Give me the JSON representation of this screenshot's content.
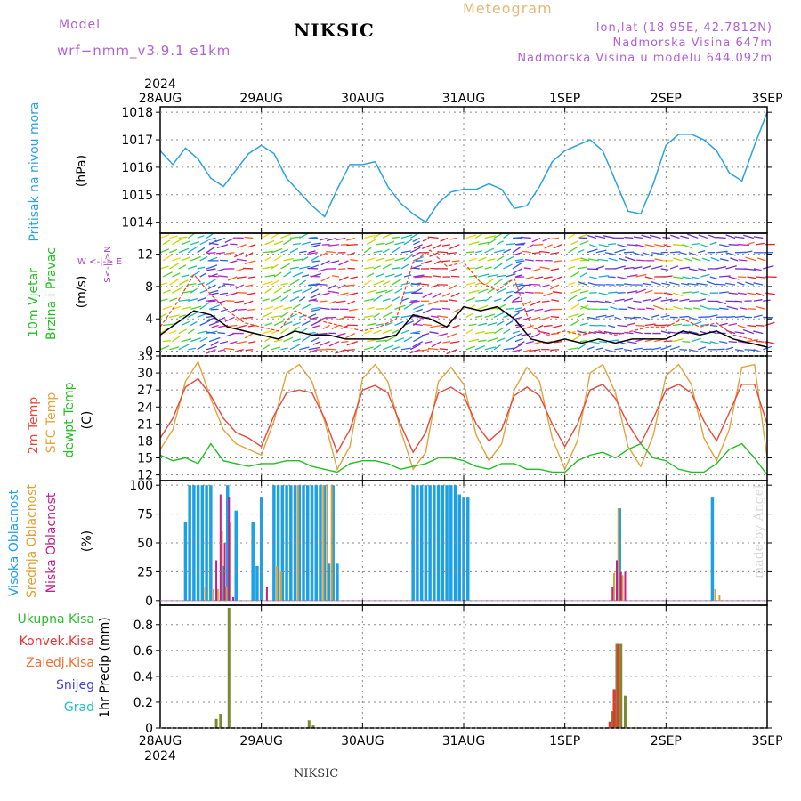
{
  "header": {
    "model_label": "Model",
    "model": "wrf−nmm_v3.9.1  e1km",
    "station": "NIKSIC",
    "product": "Meteogram",
    "lonlat": "lon,lat (18.95E, 42.7812N)",
    "altitude": "Nadmorska Visina 647m",
    "altitude_model": "Nadmorska Visina u modelu 644.092m",
    "footer_station": "NIKSIC",
    "credit": "made by Angel"
  },
  "colors": {
    "pressure": "#29a3e0",
    "wind_speed": "#000000",
    "wind_gust": "#ff3b1f",
    "temp2m": "#e8473a",
    "sfc_temp": "#e3a33b",
    "dewpt": "#20c020",
    "cloud_high": "#1ea0e6",
    "cloud_mid": "#e0a030",
    "cloud_low": "#c0208a",
    "precip_total": "#2cbc2c",
    "precip_conv": "#ee3030",
    "precip_frozen": "#f07030",
    "snow": "#4040e0",
    "graupel": "#20c0c0"
  },
  "time_axis": {
    "year": "2024",
    "labels": [
      "28AUG",
      "29AUG",
      "30AUG",
      "31AUG",
      "1SEP",
      "2SEP",
      "3SEP"
    ],
    "hours": 144
  },
  "panels": {
    "pressure": {
      "title": "Pritisak na nivou mora",
      "unit": "(hPa)"
    },
    "wind": {
      "title_line1": "10m Vjetar",
      "title_line2": "Brzina i Pravac",
      "unit": "(m/s)",
      "legend": "W  <-|->  E",
      "legend2": "S<-|->N"
    },
    "temp": {
      "label_2m": "2m Temp",
      "label_sfc": "SFC Temp",
      "label_dew": "dewpt Temp",
      "unit": "(C)"
    },
    "cloud": {
      "label_high": "Visoka Oblacnost",
      "label_mid": "Srednja Oblacnost",
      "label_low": "Niska Oblacnost",
      "unit": "(%)"
    },
    "precip": {
      "labels": [
        "Ukupna Kisa",
        "Konvek.Kisa",
        "Zaledj.Kisa",
        "Snijeg",
        "Grad"
      ],
      "unit": "1hr Precip (mm)"
    }
  },
  "chart_data": [
    {
      "type": "line",
      "title": "Pritisak na nivou mora",
      "ylabel": "(hPa)",
      "ylim": [
        1013.6,
        1018.2
      ],
      "yticks": [
        1014,
        1015,
        1016,
        1017,
        1018
      ],
      "x": [
        0,
        3,
        6,
        9,
        12,
        15,
        18,
        21,
        24,
        27,
        30,
        33,
        36,
        39,
        42,
        45,
        48,
        51,
        54,
        57,
        60,
        63,
        66,
        69,
        72,
        75,
        78,
        81,
        84,
        87,
        90,
        93,
        96,
        99,
        102,
        105,
        108,
        111,
        114,
        117,
        120,
        123,
        126,
        129,
        132,
        135,
        138,
        141,
        144
      ],
      "series": [
        {
          "values": [
            1016.6,
            1016.1,
            1016.7,
            1016.3,
            1015.6,
            1015.3,
            1015.9,
            1016.5,
            1016.8,
            1016.5,
            1015.6,
            1015.1,
            1014.6,
            1014.2,
            1015.2,
            1016.1,
            1016.1,
            1016.2,
            1015.3,
            1014.7,
            1014.3,
            1014.0,
            1014.7,
            1015.1,
            1015.2,
            1015.2,
            1015.4,
            1015.2,
            1014.5,
            1014.6,
            1015.3,
            1016.2,
            1016.6,
            1016.8,
            1017.0,
            1016.6,
            1015.5,
            1014.4,
            1014.3,
            1015.4,
            1016.8,
            1017.2,
            1017.2,
            1017.0,
            1016.6,
            1015.8,
            1015.5,
            1016.8,
            1018.0
          ]
        }
      ]
    },
    {
      "type": "line",
      "title": "10m Vjetar Brzina i Pravac",
      "ylabel": "(m/s)",
      "ylim": [
        -0.6,
        14.6
      ],
      "yticks": [
        0,
        4,
        8,
        12
      ],
      "x": [
        0,
        4,
        8,
        12,
        16,
        20,
        24,
        28,
        32,
        36,
        40,
        44,
        48,
        52,
        56,
        60,
        64,
        68,
        72,
        76,
        80,
        84,
        88,
        92,
        96,
        100,
        104,
        108,
        112,
        116,
        120,
        124,
        128,
        132,
        136,
        140,
        144
      ],
      "series": [
        {
          "name": "speed",
          "values": [
            2.0,
            3.5,
            5.0,
            4.5,
            3.0,
            2.5,
            2.0,
            1.5,
            2.5,
            2.0,
            2.0,
            1.5,
            1.5,
            1.5,
            2.0,
            4.5,
            4.0,
            3.0,
            5.5,
            5.0,
            5.5,
            4.0,
            1.5,
            1.0,
            1.5,
            1.0,
            1.5,
            1.0,
            1.5,
            1.5,
            1.5,
            2.5,
            2.0,
            2.5,
            1.5,
            1.0,
            0.5
          ]
        },
        {
          "name": "gust",
          "values": [
            3.0,
            6.0,
            9.5,
            7.0,
            5.0,
            3.5,
            3.0,
            2.5,
            5.0,
            4.0,
            3.5,
            3.0,
            2.5,
            3.0,
            4.0,
            11.0,
            12.5,
            10.5,
            11.0,
            8.5,
            7.5,
            9.0,
            3.0,
            2.0,
            2.5,
            2.0,
            2.5,
            2.0,
            2.5,
            3.0,
            3.0,
            4.0,
            3.0,
            3.5,
            2.0,
            1.5,
            1.0
          ]
        }
      ]
    },
    {
      "type": "line",
      "title": "2m Temp / SFC Temp / dewpt Temp",
      "ylabel": "(C)",
      "ylim": [
        11,
        33
      ],
      "yticks": [
        12,
        15,
        18,
        21,
        24,
        27,
        30,
        33
      ],
      "x": [
        0,
        3,
        6,
        9,
        12,
        15,
        18,
        21,
        24,
        27,
        30,
        33,
        36,
        39,
        42,
        45,
        48,
        51,
        54,
        57,
        60,
        63,
        66,
        69,
        72,
        75,
        78,
        81,
        84,
        87,
        90,
        93,
        96,
        99,
        102,
        105,
        108,
        111,
        114,
        117,
        120,
        123,
        126,
        129,
        132,
        135,
        138,
        141,
        144
      ],
      "series": [
        {
          "name": "2m Temp",
          "values": [
            18.5,
            22.0,
            27.5,
            29.0,
            26.0,
            22.0,
            19.5,
            18.5,
            17.0,
            22.5,
            26.5,
            27.0,
            26.5,
            22.0,
            16.0,
            20.0,
            27.0,
            27.8,
            26.5,
            21.0,
            16.0,
            19.5,
            26.5,
            27.5,
            26.0,
            21.0,
            18.0,
            20.0,
            26.0,
            27.5,
            26.0,
            21.0,
            17.0,
            21.0,
            27.0,
            28.0,
            25.5,
            21.0,
            17.5,
            22.0,
            27.0,
            28.0,
            26.5,
            21.5,
            18.0,
            23.0,
            28.0,
            28.0,
            21.0
          ]
        },
        {
          "name": "SFC Temp",
          "values": [
            16.5,
            20.0,
            28.5,
            32.0,
            25.5,
            20.0,
            17.5,
            16.5,
            15.5,
            21.5,
            30.0,
            31.5,
            28.5,
            21.5,
            13.0,
            17.0,
            29.0,
            31.5,
            28.5,
            20.0,
            13.0,
            16.0,
            28.5,
            31.0,
            28.0,
            19.0,
            14.5,
            17.5,
            27.0,
            31.0,
            28.5,
            18.5,
            13.0,
            18.0,
            30.0,
            31.5,
            26.5,
            17.0,
            13.5,
            19.0,
            29.5,
            31.5,
            28.0,
            18.5,
            14.5,
            20.0,
            31.0,
            31.5,
            15.0
          ]
        },
        {
          "name": "dewpt Temp",
          "values": [
            15.5,
            14.5,
            15.0,
            14.0,
            17.5,
            14.5,
            14.0,
            13.5,
            14.0,
            14.0,
            14.5,
            14.5,
            13.5,
            13.0,
            12.5,
            14.0,
            14.5,
            14.5,
            14.0,
            13.0,
            13.5,
            14.0,
            15.0,
            15.0,
            14.5,
            13.5,
            13.0,
            14.0,
            14.0,
            13.0,
            13.0,
            12.5,
            12.5,
            14.5,
            15.5,
            16.0,
            15.0,
            16.5,
            17.5,
            15.0,
            14.5,
            13.0,
            12.5,
            12.5,
            14.0,
            16.5,
            17.5,
            15.0,
            12.0
          ]
        }
      ]
    },
    {
      "type": "bar",
      "title": "Visoka / Srednja / Niska Oblacnost",
      "ylabel": "(%)",
      "ylim": [
        0,
        100
      ],
      "yticks": [
        0,
        25,
        50,
        75,
        100
      ],
      "series": [
        {
          "name": "Visoka Oblacnost",
          "hours": [
            6,
            7,
            8,
            9,
            10,
            11,
            12,
            15,
            16,
            18,
            22,
            23,
            24,
            27,
            28,
            29,
            30,
            31,
            32,
            33,
            34,
            35,
            36,
            37,
            38,
            39,
            40,
            41,
            42,
            60,
            61,
            62,
            63,
            64,
            65,
            66,
            67,
            68,
            69,
            70,
            71,
            72,
            73,
            109,
            131
          ],
          "values": [
            68,
            100,
            100,
            100,
            100,
            100,
            100,
            30,
            100,
            78,
            68,
            30,
            90,
            100,
            100,
            100,
            100,
            100,
            100,
            100,
            100,
            100,
            100,
            100,
            100,
            100,
            32,
            100,
            32,
            100,
            100,
            100,
            100,
            100,
            100,
            100,
            100,
            100,
            100,
            100,
            92,
            90,
            90,
            80,
            90
          ]
        },
        {
          "name": "Srednja Oblacnost",
          "hours": [
            11,
            13,
            14,
            15,
            16,
            17,
            28,
            29,
            33,
            39,
            40,
            41,
            108,
            109,
            110,
            132,
            133
          ],
          "values": [
            12,
            10,
            10,
            60,
            12,
            68,
            30,
            25,
            100,
            100,
            100,
            100,
            24,
            80,
            22,
            10,
            5
          ]
        },
        {
          "name": "Niska Oblacnost",
          "hours": [
            13,
            14,
            15,
            16,
            17,
            25,
            107,
            108,
            109,
            110
          ],
          "values": [
            35,
            92,
            50,
            90,
            3,
            12,
            12,
            35,
            25,
            25
          ]
        }
      ]
    },
    {
      "type": "bar",
      "title": "1hr Precip",
      "ylabel": "1hr Precip (mm)",
      "ylim": [
        0,
        0.95
      ],
      "yticks": [
        0,
        0.2,
        0.4,
        0.6,
        0.8
      ],
      "series": [
        {
          "name": "Ukupna Kisa",
          "hours": [
            13,
            14,
            16,
            35,
            36,
            107,
            108,
            109,
            110
          ],
          "values": [
            0.07,
            0.11,
            0.93,
            0.06,
            0.02,
            0.13,
            0.65,
            0.65,
            0.25
          ]
        },
        {
          "name": "Konvek.Kisa",
          "hours": [
            107,
            108,
            109
          ],
          "values": [
            0.05,
            0.3,
            0.65
          ]
        }
      ]
    }
  ]
}
